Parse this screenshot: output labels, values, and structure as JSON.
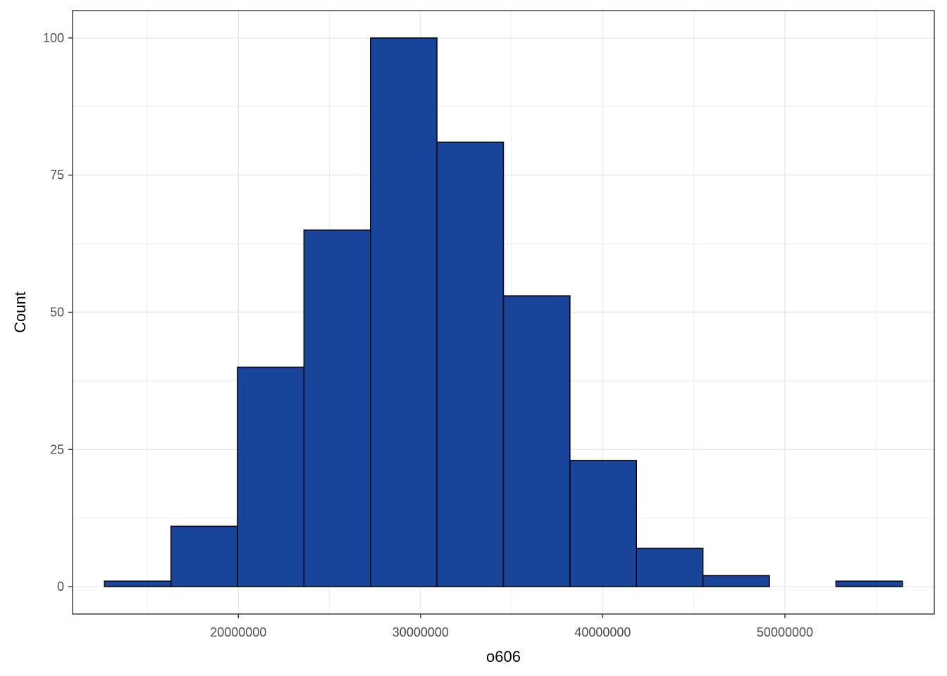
{
  "chart_data": {
    "type": "histogram",
    "title": "",
    "xlabel": "o606",
    "ylabel": "Count",
    "bin_width": 3650000,
    "bins": [
      {
        "x0": 12650000,
        "x1": 16300000,
        "count": 1
      },
      {
        "x0": 16300000,
        "x1": 19950000,
        "count": 11
      },
      {
        "x0": 19950000,
        "x1": 23600000,
        "count": 40
      },
      {
        "x0": 23600000,
        "x1": 27250000,
        "count": 65
      },
      {
        "x0": 27250000,
        "x1": 30900000,
        "count": 100
      },
      {
        "x0": 30900000,
        "x1": 34550000,
        "count": 81
      },
      {
        "x0": 34550000,
        "x1": 38200000,
        "count": 53
      },
      {
        "x0": 38200000,
        "x1": 41850000,
        "count": 23
      },
      {
        "x0": 41850000,
        "x1": 45500000,
        "count": 7
      },
      {
        "x0": 45500000,
        "x1": 49150000,
        "count": 2
      },
      {
        "x0": 49150000,
        "x1": 52800000,
        "count": 0
      },
      {
        "x0": 52800000,
        "x1": 56450000,
        "count": 1
      }
    ],
    "xlim": [
      10900000,
      58200000
    ],
    "ylim": [
      -5,
      105
    ],
    "x_ticks": [
      20000000,
      30000000,
      40000000,
      50000000
    ],
    "x_tick_labels": [
      "20000000",
      "30000000",
      "40000000",
      "50000000"
    ],
    "y_ticks": [
      0,
      25,
      50,
      75,
      100
    ],
    "y_tick_labels": [
      "0",
      "25",
      "50",
      "75",
      "100"
    ],
    "grid": true,
    "legend": "none",
    "colors": {
      "fill": "#18449a",
      "outline": "#000000",
      "grid": "#ebebeb",
      "panel_border": "#333333"
    }
  }
}
